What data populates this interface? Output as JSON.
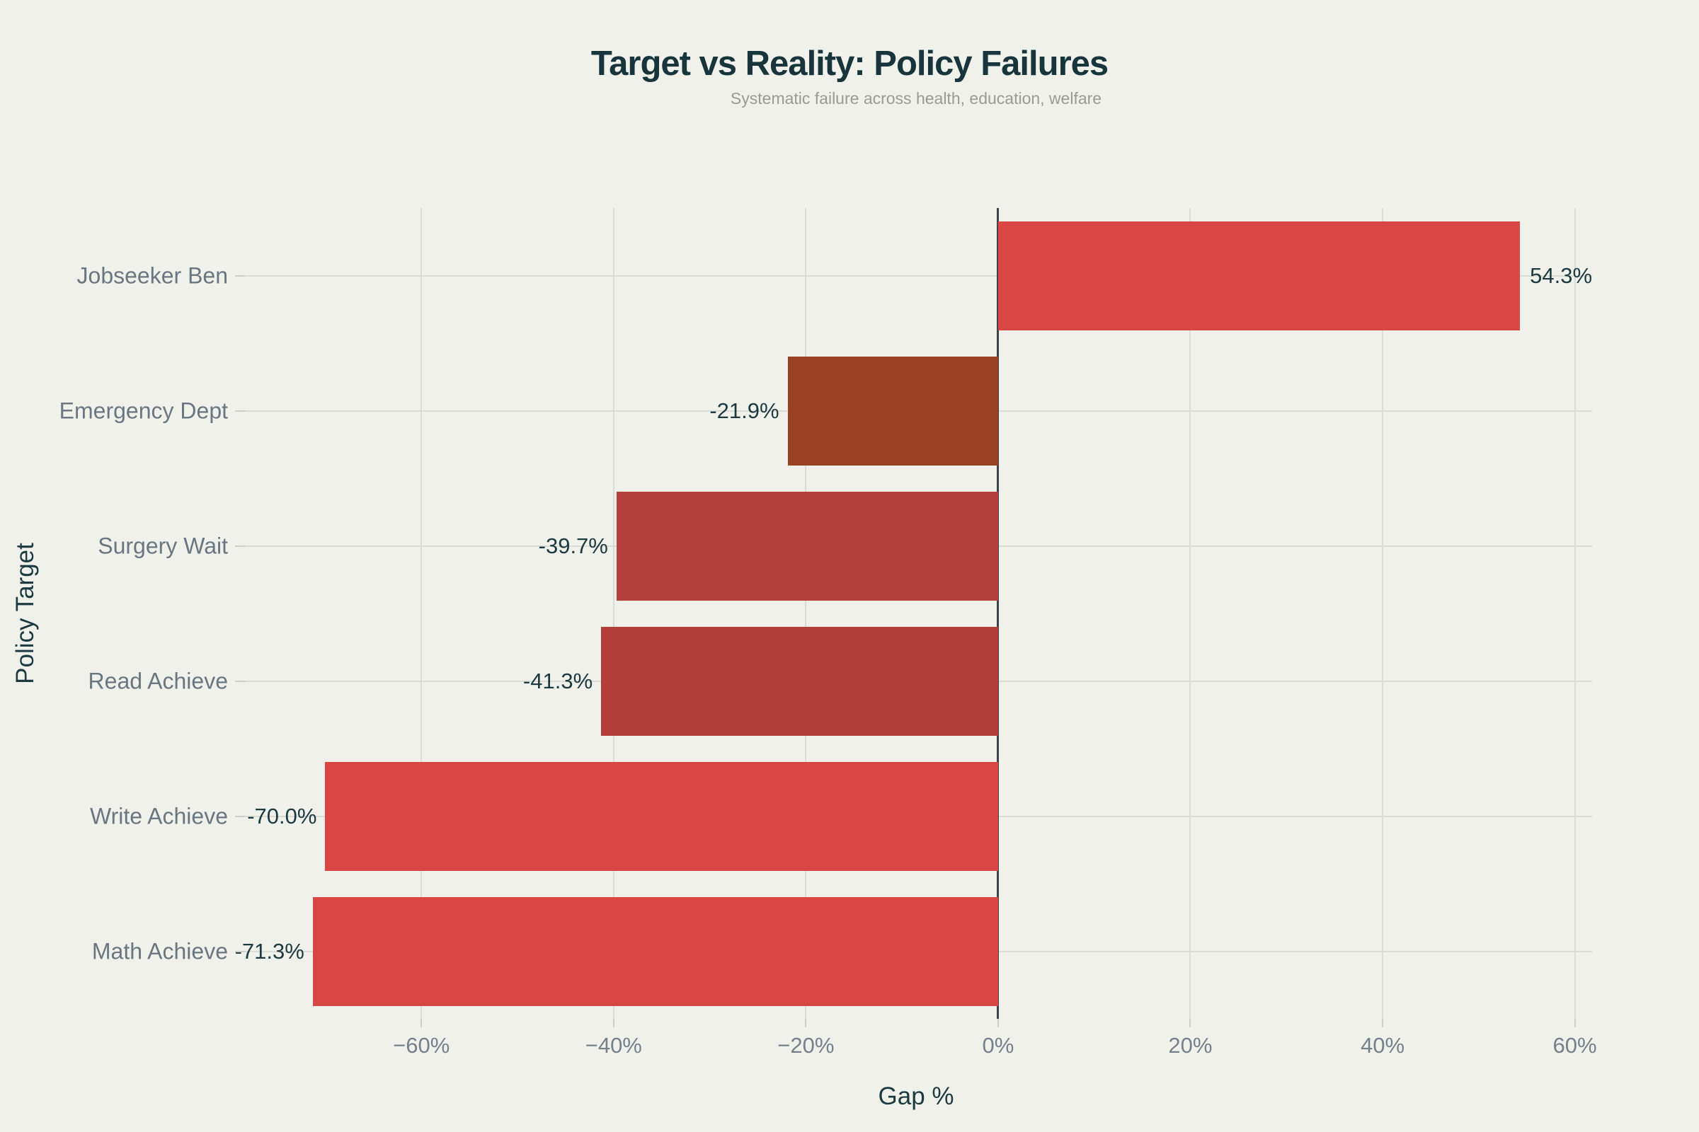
{
  "page": {
    "background": "#f1f1ec"
  },
  "header": {
    "title": "Target vs Reality: Policy Failures",
    "subtitle": "Systematic failure across health, education, welfare"
  },
  "chart_data": {
    "type": "bar",
    "orientation": "horizontal",
    "title": "Target vs Reality: Policy Failures",
    "subtitle": "Systematic failure across health, education, welfare",
    "xlabel": "Gap %",
    "ylabel": "Policy Target",
    "categories": [
      "Jobseeker Ben",
      "Emergency Dept",
      "Surgery Wait",
      "Read Achieve",
      "Write Achieve",
      "Math Achieve"
    ],
    "values": [
      54.3,
      -21.9,
      -39.7,
      -41.3,
      -70.0,
      -71.3
    ],
    "bar_labels": [
      "54.3%",
      "-21.9%",
      "-39.7%",
      "-41.3%",
      "-70.0%",
      "-71.3%"
    ],
    "bar_colors": [
      "#d84744",
      "#974122",
      "#b6413c",
      "#b43f3a",
      "#d84744",
      "#d84744"
    ],
    "xlim": [
      -78.8,
      61.8
    ],
    "x_ticks": {
      "values": [
        -60,
        -40,
        -20,
        0,
        20,
        40,
        60
      ],
      "labels": [
        "−60%",
        "−40%",
        "−20%",
        "0%",
        "20%",
        "40%",
        "60%"
      ]
    },
    "grid": true,
    "legend": "none"
  },
  "style": {
    "title_color": "#18353c",
    "subtitle_color": "#9b9b95",
    "axis_title_color": "#1d3a40",
    "value_label_color": "#1d3a40",
    "category_label_color": "#6a7680",
    "tick_label_color": "#75808a",
    "grid_color": "#dcdcd6",
    "zero_line_color": "#3f444a",
    "tick_mark_color": "#cfcfc8"
  }
}
